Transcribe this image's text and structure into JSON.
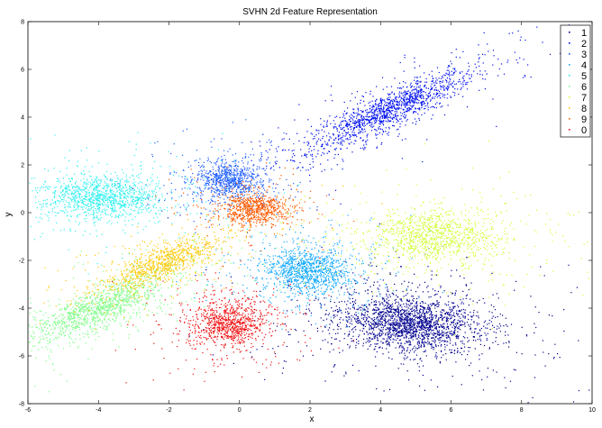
{
  "chart_data": {
    "type": "scatter",
    "title": "SVHN 2d Feature Representation",
    "xlabel": "x",
    "ylabel": "y",
    "xlim": [
      -6,
      10
    ],
    "ylim": [
      -8,
      8
    ],
    "xticks": [
      -6,
      -4,
      -2,
      0,
      2,
      4,
      6,
      8,
      10
    ],
    "yticks": [
      -8,
      -6,
      -4,
      -2,
      0,
      2,
      4,
      6,
      8
    ],
    "legend_position": "top-right",
    "grid": false,
    "series": [
      {
        "name": "1",
        "color": "#00008f",
        "center": [
          4.8,
          -4.6
        ],
        "spread": [
          0.95,
          0.55
        ],
        "count": 2200,
        "tilt": -0.15
      },
      {
        "name": "2",
        "color": "#0010ef",
        "center": [
          4.2,
          4.3
        ],
        "spread": [
          1.3,
          0.3
        ],
        "count": 1500,
        "tilt": 0.62
      },
      {
        "name": "3",
        "color": "#1f5fff",
        "center": [
          -0.3,
          1.4
        ],
        "spread": [
          0.45,
          0.38
        ],
        "count": 900,
        "tilt": 0.0
      },
      {
        "name": "4",
        "color": "#12aaff",
        "center": [
          2.0,
          -2.4
        ],
        "spread": [
          0.6,
          0.45
        ],
        "count": 1200,
        "tilt": 0.0
      },
      {
        "name": "5",
        "color": "#30f0f0",
        "center": [
          -4.0,
          0.7
        ],
        "spread": [
          0.85,
          0.45
        ],
        "count": 1300,
        "tilt": 0.0
      },
      {
        "name": "6",
        "color": "#7bff84",
        "center": [
          -4.0,
          -4.0
        ],
        "spread": [
          1.1,
          0.35
        ],
        "count": 1300,
        "tilt": 0.55
      },
      {
        "name": "7",
        "color": "#d0ff2e",
        "center": [
          5.5,
          -1.0
        ],
        "spread": [
          0.95,
          0.55
        ],
        "count": 1200,
        "tilt": 0.0
      },
      {
        "name": "8",
        "color": "#ffc800",
        "center": [
          -2.2,
          -2.1
        ],
        "spread": [
          1.0,
          0.32
        ],
        "count": 1000,
        "tilt": 0.55
      },
      {
        "name": "9",
        "color": "#ff5a00",
        "center": [
          0.4,
          0.2
        ],
        "spread": [
          0.45,
          0.32
        ],
        "count": 800,
        "tilt": 0.0
      },
      {
        "name": "0",
        "color": "#f01010",
        "center": [
          -0.3,
          -4.6
        ],
        "spread": [
          0.55,
          0.45
        ],
        "count": 1000,
        "tilt": 0.0
      }
    ]
  }
}
